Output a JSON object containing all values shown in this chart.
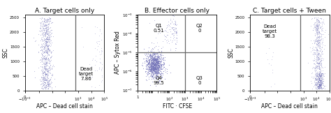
{
  "title_A": "A. Target cells only",
  "title_B": "B. Effector cells only",
  "title_C": "C. Target cells + Tween",
  "xlabel_A": "APC – Dead cell stain",
  "xlabel_B": "FITC · CFSE",
  "xlabel_C": "APC – Dead cell stain",
  "ylabel_A": "SSC",
  "ylabel_B": "APC – Sytox Red",
  "ylabel_C": "SSC",
  "annotation_A": "Dead\ntarget\n7.86",
  "annotation_B_Q1": "Q1\n0.51",
  "annotation_B_Q2": "Q2\n0",
  "annotation_B_Q3": "Q3\n0",
  "annotation_B_Q4": "Q4\n99.5",
  "annotation_C": "Dead\ntarget\n98.3",
  "bg_color": "#ffffff",
  "dot_color_blue": "#7777bb",
  "gate_color": "#666666",
  "title_fontsize": 6.5,
  "label_fontsize": 5.5,
  "tick_fontsize": 4,
  "annot_fontsize": 5.0
}
